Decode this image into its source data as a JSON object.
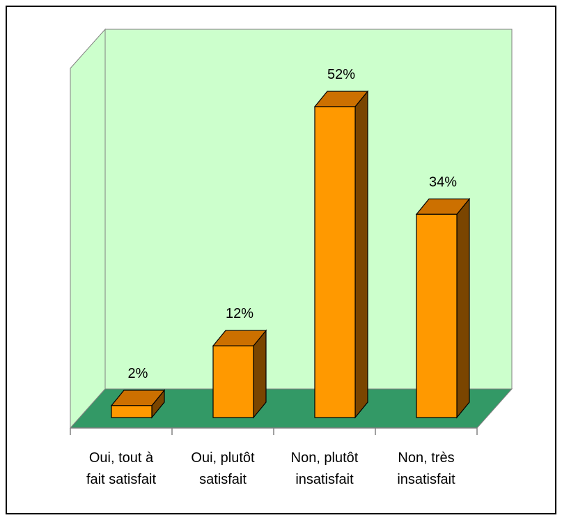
{
  "chart_data": {
    "type": "bar",
    "style": "3d-column",
    "categories": [
      [
        "Oui, tout à",
        "fait satisfait"
      ],
      [
        "Oui, plutôt",
        "satisfait"
      ],
      [
        "Non, plutôt",
        "insatisfait"
      ],
      [
        "Non, très",
        "insatisfait"
      ]
    ],
    "values": [
      2,
      12,
      52,
      34
    ],
    "value_labels": [
      "2%",
      "12%",
      "52%",
      "34%"
    ],
    "unit": "%",
    "ylim": [
      0,
      52
    ],
    "grid": false,
    "legend": "none",
    "colors": {
      "bar_front": "#FF9900",
      "bar_top": "#CC7000",
      "bar_side": "#7A4500",
      "wall": "#CCFFCC",
      "floor": "#339966",
      "outline": "#000000",
      "axis": "#808080"
    }
  }
}
